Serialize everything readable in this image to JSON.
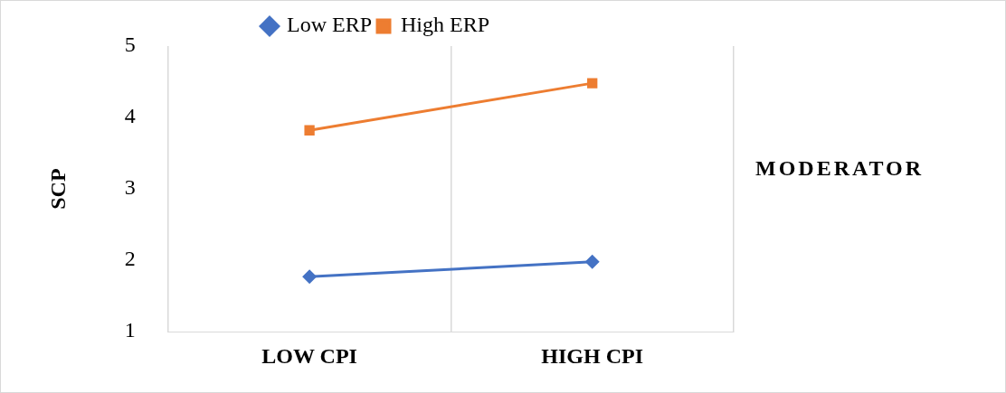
{
  "chart_data": {
    "type": "line",
    "categories": [
      "LOW CPI",
      "HIGH CPI"
    ],
    "ylabel": "SCP",
    "ylim": [
      1,
      5
    ],
    "yticks": [
      1,
      2,
      3,
      4,
      5
    ],
    "grid": "x",
    "legend": "top",
    "line_style": "solid",
    "annotations": [
      "MODERATOR"
    ],
    "series": [
      {
        "name": "Low ERP",
        "color": "#4472c4",
        "marker": "diamond",
        "values": [
          1.77,
          1.98
        ]
      },
      {
        "name": "High ERP",
        "color": "#ed7d31",
        "marker": "square",
        "values": [
          3.82,
          4.48
        ]
      }
    ]
  }
}
